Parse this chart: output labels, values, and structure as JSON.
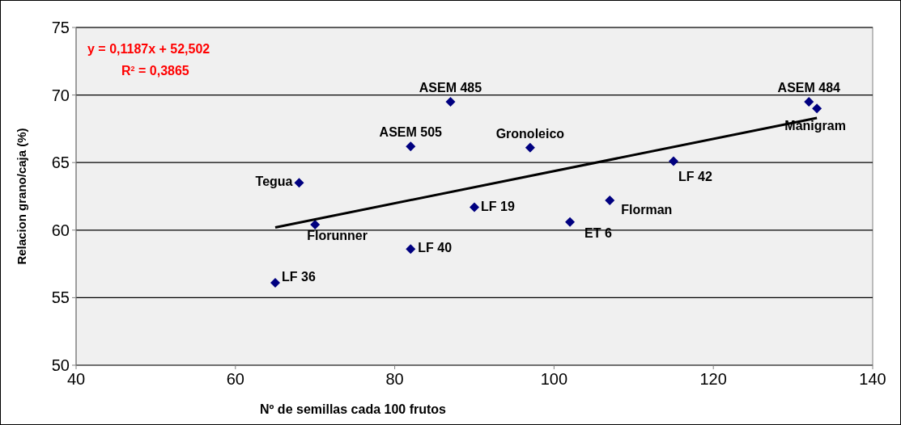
{
  "chart_data": {
    "type": "scatter",
    "xlabel": "Nº de semillas cada 100 frutos",
    "ylabel": "Relacion grano/caja (%)",
    "xlim": [
      40,
      140
    ],
    "xticks": [
      40,
      60,
      80,
      100,
      120,
      140
    ],
    "ylim": [
      50,
      75
    ],
    "yticks": [
      50,
      55,
      60,
      65,
      70,
      75
    ],
    "grid": "y",
    "series": [
      {
        "color": "#000080",
        "marker": "diamond",
        "x": [
          65,
          68,
          70,
          82,
          82,
          87,
          90,
          97,
          102,
          107,
          115,
          132,
          133
        ],
        "values": [
          56.1,
          63.5,
          60.4,
          58.6,
          66.2,
          69.5,
          61.7,
          66.1,
          60.6,
          62.2,
          65.1,
          69.5,
          69.0
        ]
      },
      {
        "type": "line",
        "color": "#000000",
        "x": [
          65,
          133
        ],
        "values": [
          60.2,
          68.3
        ]
      }
    ],
    "annotations": [
      {
        "text": "LF 36",
        "x": 65,
        "y": 56.1
      },
      {
        "text": "Tegua",
        "x": 68,
        "y": 63.5
      },
      {
        "text": "Florunner",
        "x": 70,
        "y": 60.4
      },
      {
        "text": "LF 40",
        "x": 82,
        "y": 58.6
      },
      {
        "text": "ASEM 505",
        "x": 82,
        "y": 66.2
      },
      {
        "text": "ASEM 485",
        "x": 87,
        "y": 69.5
      },
      {
        "text": "LF 19",
        "x": 90,
        "y": 61.7
      },
      {
        "text": "Gronoleico",
        "x": 97,
        "y": 66.1
      },
      {
        "text": "ET 6",
        "x": 102,
        "y": 60.6
      },
      {
        "text": "Florman",
        "x": 107,
        "y": 62.2
      },
      {
        "text": "LF 42",
        "x": 115,
        "y": 65.1
      },
      {
        "text": "ASEM 484",
        "x": 132,
        "y": 69.5
      },
      {
        "text": "Manigram",
        "x": 133,
        "y": 69.0
      },
      "y = 0,1187x + 52,502",
      "R$^{2}$ = 0,3865"
    ]
  }
}
